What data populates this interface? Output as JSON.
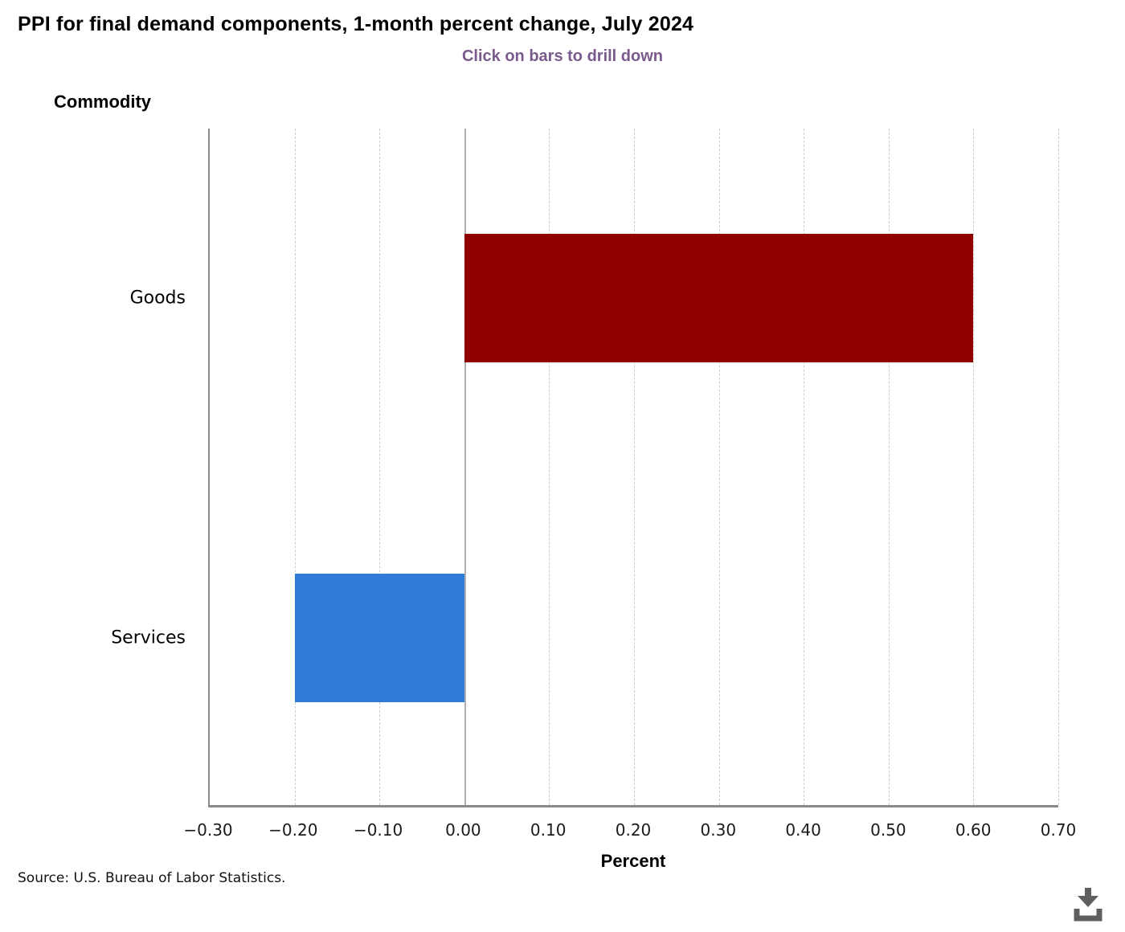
{
  "header": {
    "title": "PPI for final demand components, 1-month percent change, July 2024",
    "subtitle": "Click on bars to drill down",
    "subtitle_color": "#7a5a8c"
  },
  "chart_data": {
    "type": "bar",
    "orientation": "horizontal",
    "title": "PPI for final demand components, 1-month percent change, July 2024",
    "subtitle": "Click on bars to drill down",
    "y_axis_title": "Commodity",
    "xlabel": "Percent",
    "categories": [
      "Goods",
      "Services"
    ],
    "values": [
      0.6,
      -0.2
    ],
    "bar_colors": [
      "#8f0000",
      "#2f7dd8"
    ],
    "xlim": [
      -0.3,
      0.7
    ],
    "xticks": [
      -0.3,
      -0.2,
      -0.1,
      0,
      0.1,
      0.2,
      0.3,
      0.4,
      0.5,
      0.6,
      0.7
    ],
    "xtick_labels": [
      "−0.30",
      "−0.20",
      "−0.10",
      "0.00",
      "0.10",
      "0.20",
      "0.30",
      "0.40",
      "0.50",
      "0.60",
      "0.70"
    ],
    "grid": "vertical dashed, solid line at zero",
    "legend": "none",
    "grid_color": "#cccccc",
    "zero_line_color": "#b0b0b0",
    "axis_line_color": "#8a8a8a"
  },
  "footer": {
    "source": "Source: U.S. Bureau of Labor Statistics.",
    "download_icon": "download-icon"
  }
}
